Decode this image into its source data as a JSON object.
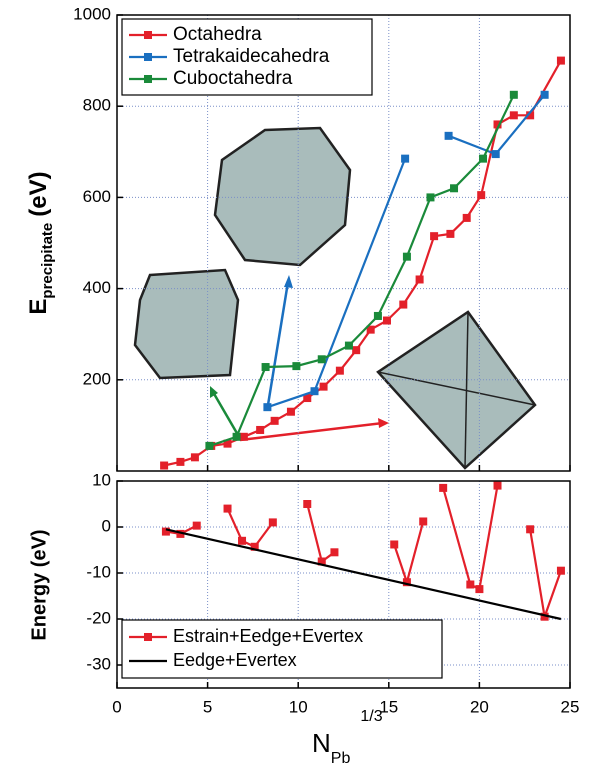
{
  "chart_data": [
    {
      "type": "line",
      "ylabel": [
        "E",
        "precipitate",
        "(eV)"
      ],
      "xlim": [
        0,
        25
      ],
      "ylim": [
        0,
        1000
      ],
      "yticks": [
        200,
        400,
        600,
        800,
        1000
      ],
      "grid": true,
      "legend": "upper left",
      "series": [
        {
          "name": "Octahedra",
          "color": "#e3202a",
          "x": [
            2.6,
            3.5,
            4.3,
            5.2,
            6.1,
            7.0,
            7.9,
            8.7,
            9.6,
            10.5,
            11.4,
            12.3,
            13.2,
            14.0,
            14.9,
            15.8,
            16.7,
            17.5,
            18.4,
            19.3,
            20.1,
            21.0,
            21.9,
            22.8,
            24.5
          ],
          "values": [
            12,
            20,
            30,
            55,
            60,
            75,
            90,
            110,
            130,
            160,
            185,
            220,
            265,
            310,
            330,
            365,
            420,
            515,
            520,
            555,
            605,
            760,
            780,
            780,
            900
          ]
        },
        {
          "name": "Tetrakaidecahedra",
          "color": "#1a6fc0",
          "x": [
            8.3,
            10.9,
            15.9,
            17.0,
            18.3,
            20.9,
            23.6
          ],
          "values": [
            140,
            175,
            685,
            null,
            735,
            695,
            825
          ]
        },
        {
          "name": "Cuboctahedra",
          "color": "#1a8a3a",
          "x": [
            5.1,
            6.6,
            8.2,
            9.9,
            11.3,
            12.8,
            14.4,
            16.0,
            17.3,
            18.6,
            20.2,
            21.9
          ],
          "values": [
            55,
            75,
            228,
            230,
            245,
            275,
            340,
            470,
            600,
            620,
            685,
            825
          ]
        }
      ]
    },
    {
      "type": "line",
      "ylabel": "Energy (eV)",
      "xlabel": [
        "N",
        "Pb",
        "1/3"
      ],
      "xlim": [
        0,
        25
      ],
      "xticks": [
        0,
        5,
        10,
        15,
        20,
        25
      ],
      "ylim": [
        -35,
        10
      ],
      "yticks": [
        -30,
        -20,
        -10,
        0,
        10
      ],
      "grid": true,
      "legend": "lower left",
      "series": [
        {
          "name": "Estrain+Eedge+Evertex",
          "color": "#e3202a",
          "markers": true,
          "x": [
            2.7,
            3.5,
            4.4,
            5.5,
            6.1,
            6.9,
            7.6,
            8.6,
            9.5,
            10.5,
            11.3,
            12.0,
            14.0,
            15.3,
            16.0,
            16.9,
            17.5,
            18.0,
            19.5,
            20.0,
            21.0,
            22.0,
            22.8,
            23.6,
            24.5
          ],
          "values": [
            -1,
            -1.5,
            0.3,
            null,
            4,
            -3,
            -4.3,
            1,
            null,
            5,
            -7.5,
            -5.5,
            null,
            -3.8,
            -12,
            1.2,
            null,
            8.5,
            -12.5,
            -13.5,
            9,
            null,
            -0.5,
            -19.5,
            -9.5
          ]
        },
        {
          "name": "Eedge+Evertex",
          "color": "#000000",
          "markers": false,
          "x": [
            2.7,
            24.5
          ],
          "values": [
            -0.5,
            -20
          ]
        }
      ]
    }
  ]
}
